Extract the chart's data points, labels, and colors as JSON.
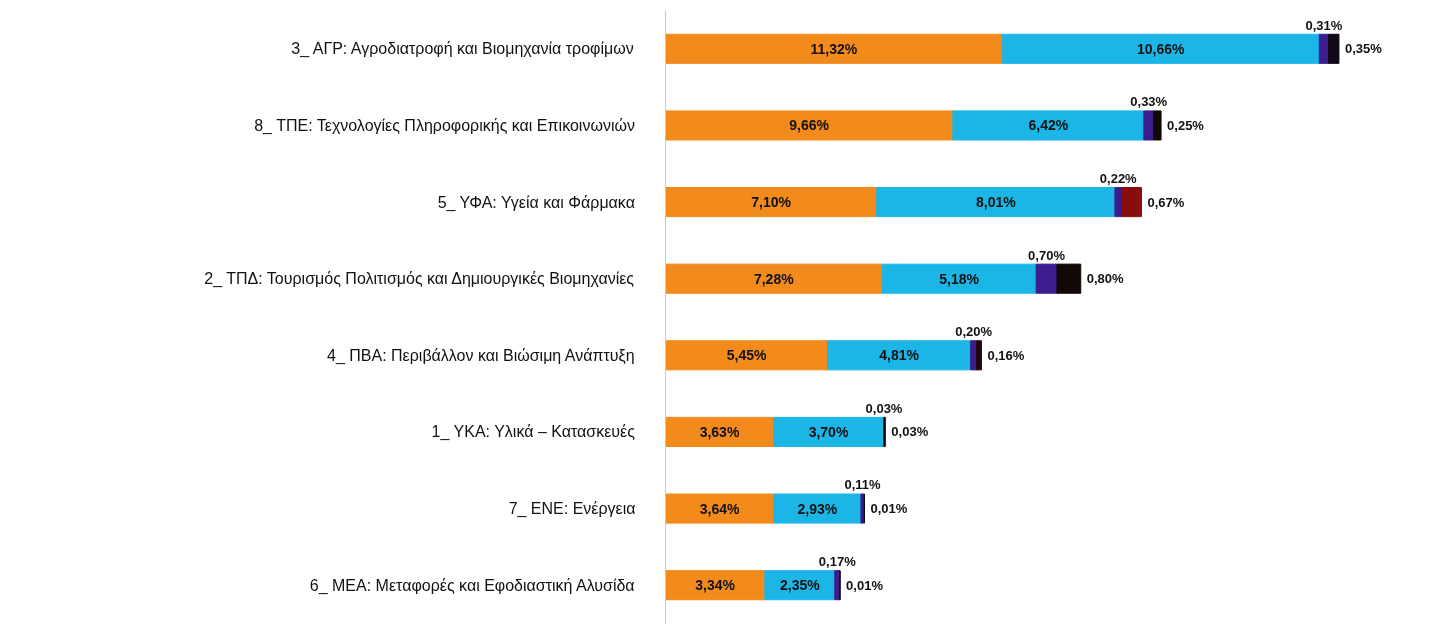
{
  "chart_data": {
    "type": "bar",
    "orientation": "horizontal",
    "stacked": true,
    "data_labels": true,
    "grid": false,
    "categories": [
      "3_ ΑΓΡ: Αγροδιατροφή και Βιομηχανία τροφίμων",
      "8_ ΤΠΕ: Τεχνολογίες Πληροφορικής και Επικοινωνιών",
      "5_ ΥΦΑ: Υγεία και Φάρμακα",
      "2_ ΤΠΔ: Τουρισμός Πολιτισμός και Δημιουργικές Βιομηχανίες",
      "4_ ΠΒΑ: Περιβάλλον και Βιώσιμη Ανάπτυξη",
      "1_ ΥΚΑ: Υλικά – Κατασκευές",
      "7_ ΕΝΕ: Ενέργεια",
      "6_ ΜΕΑ: Μεταφορές και Εφοδιαστική Αλυσίδα"
    ],
    "series": [
      {
        "color": "#f28a1c",
        "values": [
          11.32,
          9.66,
          7.1,
          7.28,
          5.45,
          3.63,
          3.64,
          3.34
        ],
        "value_labels": [
          "11,32%",
          "9,66%",
          "7,10%",
          "7,28%",
          "5,45%",
          "3,63%",
          "3,64%",
          "3,34%"
        ]
      },
      {
        "color": "#1cb6e6",
        "values": [
          10.66,
          6.42,
          8.01,
          5.18,
          4.81,
          3.7,
          2.93,
          2.35
        ],
        "value_labels": [
          "10,66%",
          "6,42%",
          "8,01%",
          "5,18%",
          "4,81%",
          "3,70%",
          "2,93%",
          "2,35%"
        ]
      },
      {
        "color": "#3b1d8f",
        "values": [
          0.31,
          0.33,
          0.22,
          0.7,
          0.2,
          0.03,
          0.11,
          0.17
        ],
        "value_labels": [
          "0,31%",
          "0,33%",
          "0,22%",
          "0,70%",
          "0,20%",
          "0,03%",
          "0,11%",
          "0,17%"
        ]
      },
      {
        "colors": [
          "#120818",
          "#120808",
          "#8a0d0d",
          "#120808",
          "#200808",
          "#120808",
          "#120808",
          "#120808"
        ],
        "values": [
          0.35,
          0.25,
          0.67,
          0.8,
          0.16,
          0.03,
          0.01,
          0.01
        ],
        "value_labels": [
          "0,35%",
          "0,25%",
          "0,67%",
          "0,80%",
          "0,16%",
          "0,03%",
          "0,01%",
          "0,01%"
        ]
      }
    ]
  }
}
